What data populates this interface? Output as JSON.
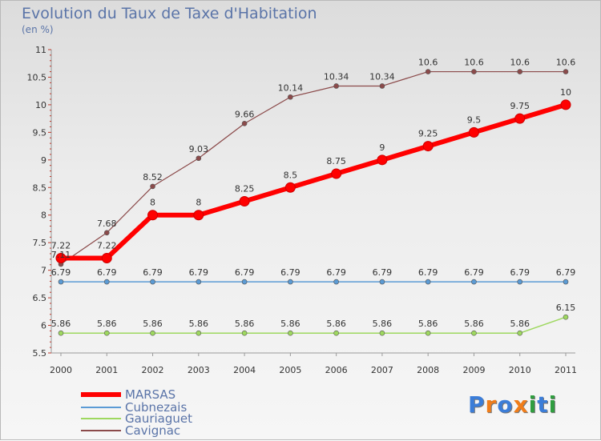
{
  "title": "Evolution du Taux de Taxe d'Habitation",
  "subtitle": "(en %)",
  "brand": "Proxiti",
  "brand_colors": [
    "#3b7dd8",
    "#f07d1a",
    "#3b7dd8",
    "#f07d1a",
    "#2f9e3f",
    "#3b7dd8",
    "#2f9e3f"
  ],
  "chart_data": {
    "type": "line",
    "x": [
      2000,
      2001,
      2002,
      2003,
      2004,
      2005,
      2006,
      2007,
      2008,
      2009,
      2010,
      2011
    ],
    "ylim": [
      5.5,
      11
    ],
    "yticks": [
      "5.5",
      "6",
      "6.5",
      "7",
      "7.5",
      "8",
      "8.5",
      "9",
      "9.5",
      "10",
      "10.5",
      "11"
    ],
    "grid": false,
    "legend_position": "bottom-left",
    "series": [
      {
        "name": "MARSAS",
        "color": "#ff0000",
        "width": 6,
        "marker": 6,
        "values": [
          7.22,
          7.22,
          8,
          8,
          8.25,
          8.5,
          8.75,
          9,
          9.25,
          9.5,
          9.75,
          10
        ],
        "labels": [
          "7.22",
          "7.22",
          "8",
          "8",
          "8.25",
          "8.5",
          "8.75",
          "9",
          "9.25",
          "9.5",
          "9.75",
          "10"
        ]
      },
      {
        "name": "Cubnezais",
        "color": "#5b9bd5",
        "width": 1.5,
        "marker": 3,
        "values": [
          6.79,
          6.79,
          6.79,
          6.79,
          6.79,
          6.79,
          6.79,
          6.79,
          6.79,
          6.79,
          6.79,
          6.79
        ],
        "labels": [
          "6.79",
          "6.79",
          "6.79",
          "6.79",
          "6.79",
          "6.79",
          "6.79",
          "6.79",
          "6.79",
          "6.79",
          "6.79",
          "6.79"
        ]
      },
      {
        "name": "Gauriaguet",
        "color": "#9ed85f",
        "width": 1.5,
        "marker": 3,
        "values": [
          5.86,
          5.86,
          5.86,
          5.86,
          5.86,
          5.86,
          5.86,
          5.86,
          5.86,
          5.86,
          5.86,
          6.15
        ],
        "labels": [
          "5.86",
          "5.86",
          "5.86",
          "5.86",
          "5.86",
          "5.86",
          "5.86",
          "5.86",
          "5.86",
          "5.86",
          "5.86",
          "6.15"
        ]
      },
      {
        "name": "Cavignac",
        "color": "#8b4a4a",
        "width": 1.2,
        "marker": 3,
        "values": [
          7.11,
          7.68,
          8.52,
          9.03,
          9.66,
          10.14,
          10.34,
          10.34,
          10.6,
          10.6,
          10.6,
          10.6
        ],
        "labels": [
          "7.11",
          "7.68",
          "8.52",
          "9.03",
          "9.66",
          "10.14",
          "10.34",
          "10.34",
          "10.6",
          "10.6",
          "10.6",
          "10.6"
        ]
      }
    ]
  }
}
